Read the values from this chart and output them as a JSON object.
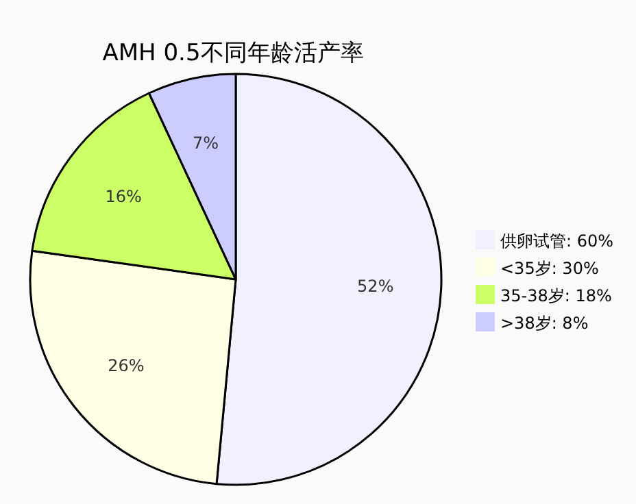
{
  "chart_data": {
    "type": "pie",
    "title": "AMH 0.5不同年龄活产率",
    "categories": [
      "供卵试管: 60%",
      "<35岁: 30%",
      "35-38岁: 18%",
      ">38岁: 8%"
    ],
    "values": [
      52,
      26,
      16,
      7
    ],
    "colors": [
      "#f0f0ff",
      "#ffffe6",
      "#ccff66",
      "#ccccff"
    ],
    "value_labels": [
      "52%",
      "26%",
      "16%",
      "7%"
    ],
    "legend": "right"
  }
}
